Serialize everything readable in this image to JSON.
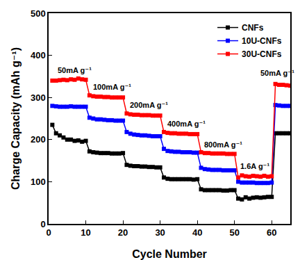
{
  "chart_data": {
    "type": "line",
    "x_label": "Cycle Number",
    "y_label": "Charge Capacity (mAh g⁻¹)",
    "x": [
      1,
      2,
      3,
      4,
      5,
      6,
      7,
      8,
      9,
      10,
      11,
      12,
      13,
      14,
      15,
      16,
      17,
      18,
      19,
      20,
      21,
      22,
      23,
      24,
      25,
      26,
      27,
      28,
      29,
      30,
      31,
      32,
      33,
      34,
      35,
      36,
      37,
      38,
      39,
      40,
      41,
      42,
      43,
      44,
      45,
      46,
      47,
      48,
      49,
      50,
      51,
      52,
      53,
      54,
      55,
      56,
      57,
      58,
      59,
      60,
      61,
      62,
      63,
      64,
      65
    ],
    "series": [
      {
        "name": "CNFs",
        "color": "#000000",
        "marker": "square",
        "values": [
          235,
          215,
          210,
          205,
          200,
          200,
          197,
          198,
          195,
          197,
          172,
          170,
          169,
          168,
          168,
          168,
          167,
          167,
          167,
          168,
          140,
          138,
          137,
          137,
          136,
          136,
          135,
          135,
          134,
          134,
          110,
          107,
          106,
          106,
          106,
          106,
          106,
          106,
          105,
          106,
          82,
          80,
          80,
          80,
          80,
          80,
          79,
          79,
          80,
          80,
          60,
          58,
          63,
          60,
          62,
          63,
          62,
          63,
          64,
          64,
          215,
          215,
          215,
          215,
          215
        ]
      },
      {
        "name": "10U-CNFs",
        "color": "#0000ff",
        "marker": "square",
        "values": [
          280,
          279,
          278,
          278,
          278,
          279,
          278,
          278,
          278,
          278,
          252,
          250,
          248,
          248,
          247,
          246,
          246,
          245,
          245,
          245,
          218,
          214,
          212,
          211,
          210,
          210,
          209,
          208,
          208,
          208,
          178,
          173,
          172,
          171,
          171,
          170,
          170,
          170,
          169,
          169,
          133,
          130,
          129,
          128,
          128,
          128,
          127,
          127,
          127,
          127,
          100,
          98,
          98,
          98,
          98,
          97,
          97,
          97,
          97,
          98,
          282,
          281,
          280,
          280,
          280
        ]
      },
      {
        "name": "30U-CNFs",
        "color": "#ff0000",
        "marker": "square",
        "values": [
          340,
          340,
          341,
          342,
          341,
          343,
          342,
          345,
          343,
          342,
          305,
          303,
          302,
          302,
          301,
          301,
          300,
          300,
          300,
          300,
          262,
          260,
          259,
          259,
          258,
          258,
          258,
          257,
          257,
          257,
          218,
          216,
          215,
          215,
          214,
          214,
          214,
          213,
          213,
          213,
          170,
          168,
          168,
          167,
          167,
          167,
          167,
          166,
          166,
          166,
          110,
          115,
          113,
          112,
          114,
          113,
          112,
          114,
          112,
          113,
          332,
          330,
          330,
          329,
          328
        ]
      }
    ],
    "annotations": [
      {
        "text": "50mA g⁻¹",
        "x": 7,
        "y": 365
      },
      {
        "text": "100mA g⁻¹",
        "x": 17,
        "y": 325
      },
      {
        "text": "200mA g⁻¹",
        "x": 27,
        "y": 283
      },
      {
        "text": "400mA g⁻¹",
        "x": 37,
        "y": 237
      },
      {
        "text": "800mA g⁻¹",
        "x": 47,
        "y": 188
      },
      {
        "text": "1.6A g⁻¹",
        "x": 55.5,
        "y": 137
      },
      {
        "text": "50mA g⁻¹",
        "x": 61.5,
        "y": 358
      }
    ],
    "xlim": [
      0,
      65
    ],
    "xticks": [
      0,
      10,
      20,
      30,
      40,
      50,
      60
    ],
    "ylim": [
      0,
      500
    ],
    "yticks": [
      0,
      100,
      200,
      300,
      400,
      500
    ],
    "grid": false,
    "legend": "top right"
  }
}
